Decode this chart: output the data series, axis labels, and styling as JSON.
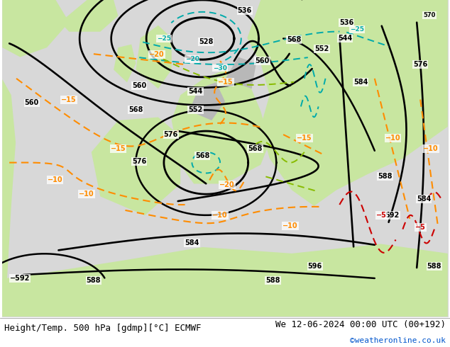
{
  "title_left": "Height/Temp. 500 hPa [gdmp][°C] ECMWF",
  "title_right": "We 12-06-2024 00:00 UTC (00+192)",
  "copyright": "©weatheronline.co.uk",
  "copyright_color": "#0055cc",
  "bg_ocean": "#d8d8d8",
  "bg_land_green": "#c8e6a0",
  "bg_land_gray": "#b8b8b8",
  "black": "#000000",
  "orange": "#ff8c00",
  "red": "#cc0000",
  "cyan": "#00aaaa",
  "lime": "#88bb00"
}
